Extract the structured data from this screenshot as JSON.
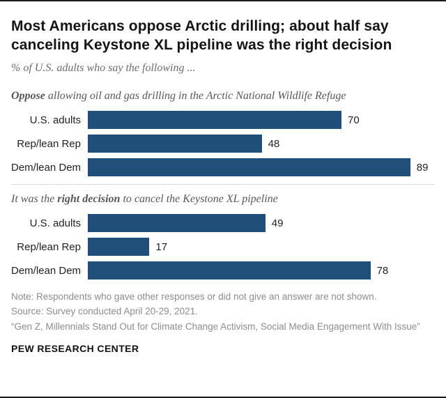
{
  "header": {
    "title": "Most Americans oppose Arctic drilling; about half say canceling Keystone XL pipeline was the right decision",
    "subtitle": "% of U.S. adults who say the following ..."
  },
  "sections": [
    {
      "label_pre": "",
      "label_bold": "Oppose",
      "label_post": " allowing oil and gas drilling in the Arctic National Wildlife Refuge"
    },
    {
      "label_pre": "It was the ",
      "label_bold": "right decision",
      "label_post": " to cancel the Keystone XL pipeline"
    }
  ],
  "chart_data": [
    {
      "type": "bar",
      "title": "Oppose allowing oil and gas drilling in the Arctic National Wildlife Refuge",
      "categories": [
        "U.S. adults",
        "Rep/lean Rep",
        "Dem/lean Dem"
      ],
      "values": [
        70,
        48,
        89
      ],
      "xlim": [
        0,
        100
      ],
      "bar_color": "#1f4e79",
      "data_labels": true,
      "orientation": "horizontal"
    },
    {
      "type": "bar",
      "title": "It was the right decision to cancel the Keystone XL pipeline",
      "categories": [
        "U.S. adults",
        "Rep/lean Rep",
        "Dem/lean Dem"
      ],
      "values": [
        49,
        17,
        78
      ],
      "xlim": [
        0,
        100
      ],
      "bar_color": "#1f4e79",
      "data_labels": true,
      "orientation": "horizontal"
    }
  ],
  "notes": {
    "line1": "Note: Respondents who gave other responses or did not give an answer are not shown.",
    "line2": "Source: Survey conducted April 20-29, 2021.",
    "line3": "“Gen Z, Millennials Stand Out for Climate Change Activism, Social Media Engagement With Issue”"
  },
  "footer": {
    "brand": "PEW RESEARCH CENTER"
  },
  "colors": {
    "bar": "#1f4e79"
  }
}
